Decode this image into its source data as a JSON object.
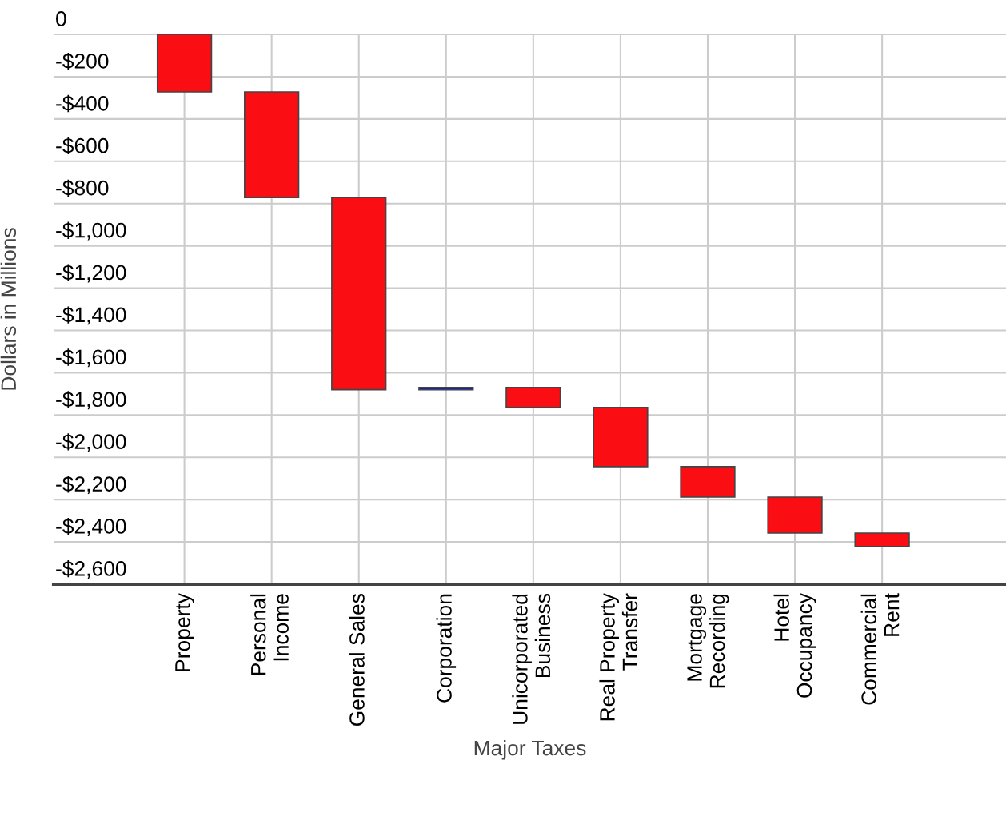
{
  "chart_data": {
    "type": "bar",
    "xlabel": "Major Taxes",
    "ylabel": "Dollars in Millions",
    "categories": [
      "Property",
      "Personal\nIncome",
      "General Sales",
      "Corporation",
      "Unicorporated\nBusiness",
      "Real Property\nTransfer",
      "Mortgage\nRecording",
      "Hotel\nOccupancy",
      "Commercial\nRent"
    ],
    "base": [
      0,
      -272,
      -772,
      -1680,
      -1670,
      -1764,
      -2044,
      -2188,
      -2358
    ],
    "values": [
      -272,
      -500,
      -908,
      10,
      -94,
      -280,
      -144,
      -170,
      -64
    ],
    "colors": [
      "#fb0d14",
      "#fb0d14",
      "#fb0d14",
      "#0d1ad8",
      "#fb0d14",
      "#fb0d14",
      "#fb0d14",
      "#fb0d14",
      "#fb0d14"
    ],
    "ylim": [
      -2600,
      0
    ],
    "yticks": [
      {
        "value": 0,
        "label": "0"
      },
      {
        "value": -200,
        "label": "-$200"
      },
      {
        "value": -400,
        "label": "-$400"
      },
      {
        "value": -600,
        "label": "-$600"
      },
      {
        "value": -800,
        "label": "-$800"
      },
      {
        "value": -1000,
        "label": "-$1,000"
      },
      {
        "value": -1200,
        "label": "-$1,200"
      },
      {
        "value": -1400,
        "label": "-$1,400"
      },
      {
        "value": -1600,
        "label": "-$1,600"
      },
      {
        "value": -1800,
        "label": "-$1,800"
      },
      {
        "value": -2000,
        "label": "-$2,000"
      },
      {
        "value": -2200,
        "label": "-$2,200"
      },
      {
        "value": -2400,
        "label": "-$2,400"
      },
      {
        "value": -2600,
        "label": "-$2,600"
      }
    ],
    "grid": true
  }
}
